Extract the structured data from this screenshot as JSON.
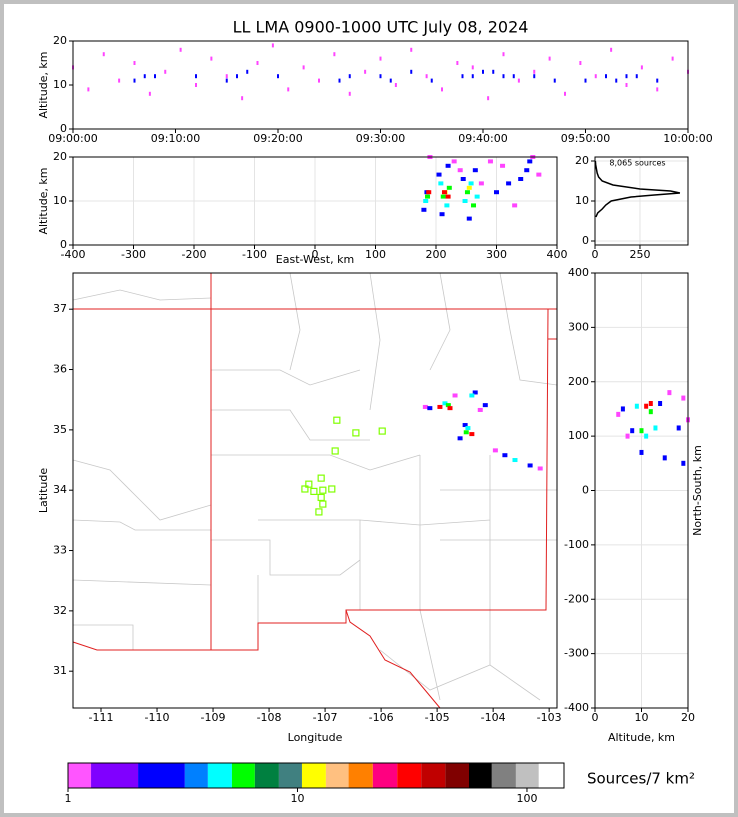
{
  "chart_data": [
    {
      "type": "scatter",
      "title": "LL LMA 0900-1000 UTC July 08, 2024",
      "ylabel": "Altitude, km",
      "xlim": [
        0,
        60
      ],
      "xticks": [
        {
          "value": 0,
          "label": "09:00:00"
        },
        {
          "value": 10,
          "label": "09:10:00"
        },
        {
          "value": 20,
          "label": "09:20:00"
        },
        {
          "value": 30,
          "label": "09:30:00"
        },
        {
          "value": 40,
          "label": "09:40:00"
        },
        {
          "value": 50,
          "label": "09:50:00"
        },
        {
          "value": 60,
          "label": "10:00:00"
        }
      ],
      "ylim": [
        0,
        20
      ],
      "yticks": [
        0,
        10,
        20
      ],
      "grid": false,
      "series": [
        {
          "color": "#ff44ff",
          "x": [
            0,
            1.5,
            3,
            4.5,
            6,
            7.5,
            9,
            10.5,
            12,
            13.5,
            15,
            16.5,
            18,
            19.5,
            21,
            22.5,
            24,
            25.5,
            27,
            28.5,
            30,
            31.5,
            33,
            34.5,
            36,
            37.5,
            39,
            40.5,
            42,
            43.5,
            45,
            46.5,
            48,
            49.5,
            51,
            52.5,
            54,
            55.5,
            57,
            58.5,
            60
          ],
          "y": [
            14,
            9,
            17,
            11,
            15,
            8,
            13,
            18,
            10,
            16,
            12,
            7,
            15,
            19,
            9,
            14,
            11,
            17,
            8,
            13,
            16,
            10,
            18,
            12,
            9,
            15,
            14,
            7,
            17,
            11,
            13,
            16,
            8,
            15,
            12,
            18,
            10,
            14,
            9,
            16,
            13
          ]
        },
        {
          "color": "#0000ff",
          "x": [
            6,
            7,
            8,
            12,
            15,
            16,
            17,
            20,
            26,
            27,
            30,
            31,
            33,
            35,
            38,
            39,
            40,
            41,
            42,
            43,
            45,
            47,
            50,
            52,
            53,
            54,
            55,
            57
          ],
          "y": [
            11,
            12,
            12,
            12,
            11,
            12,
            13,
            12,
            11,
            12,
            12,
            11,
            13,
            11,
            12,
            12,
            13,
            13,
            12,
            12,
            12,
            11,
            11,
            12,
            11,
            12,
            12,
            11
          ]
        }
      ]
    },
    {
      "type": "scatter",
      "xlabel": "East-West, km",
      "ylabel": "Altitude, km",
      "xlim": [
        -400,
        400
      ],
      "xticks": [
        -400,
        -300,
        -200,
        -100,
        0,
        100,
        200,
        300,
        400
      ],
      "ylim": [
        0,
        20
      ],
      "yticks": [
        0,
        10,
        20
      ],
      "grid": true,
      "series": [
        {
          "color": "#ff44ff",
          "x": [
            190,
            230,
            240,
            275,
            290,
            310,
            330,
            360,
            370
          ],
          "y": [
            20,
            19,
            17,
            14,
            19,
            18,
            9,
            20,
            16
          ]
        },
        {
          "color": "#0000ff",
          "x": [
            180,
            185,
            205,
            210,
            220,
            245,
            255,
            265,
            300,
            320,
            340,
            350,
            355
          ],
          "y": [
            8,
            12,
            16,
            7,
            18,
            15,
            6,
            17,
            12,
            14,
            15,
            17,
            19
          ]
        },
        {
          "color": "#00ffff",
          "x": [
            183,
            208,
            218,
            248,
            258,
            268
          ],
          "y": [
            10,
            14,
            9,
            10,
            14,
            11
          ]
        },
        {
          "color": "#00ff00",
          "x": [
            186,
            212,
            222,
            252,
            262
          ],
          "y": [
            11,
            11,
            13,
            12,
            9
          ]
        },
        {
          "color": "#ffff00",
          "x": [
            215,
            255
          ],
          "y": [
            12,
            13
          ]
        },
        {
          "color": "#ff0000",
          "x": [
            188,
            214,
            220
          ],
          "y": [
            12,
            12,
            11
          ]
        }
      ]
    },
    {
      "type": "line",
      "annotation": "8,065 sources",
      "xlim": [
        0,
        517
      ],
      "xticks": [
        0,
        250
      ],
      "ylim": [
        -1,
        21
      ],
      "yticks": [
        0,
        10,
        20
      ],
      "grid": true,
      "series": [
        {
          "color": "#000000",
          "x": [
            5,
            15,
            40,
            60,
            90,
            200,
            330,
            472,
            420,
            250,
            100,
            40,
            20,
            12,
            8,
            4,
            2
          ],
          "y": [
            6,
            7,
            8,
            9,
            10,
            11,
            11.5,
            12,
            12.5,
            13,
            14,
            15,
            16,
            17,
            18,
            19,
            20
          ]
        }
      ]
    },
    {
      "type": "scatter",
      "xlabel": "Longitude",
      "ylabel": "Latitude",
      "xlim": [
        -111.5,
        -102.86
      ],
      "xticks": [
        -111,
        -110,
        -109,
        -108,
        -107,
        -106,
        -105,
        -104,
        -103
      ],
      "ylim": [
        30.39,
        37.6
      ],
      "yticks": [
        31,
        32,
        33,
        34,
        35,
        36,
        37
      ],
      "grid": false,
      "series": [
        {
          "color": "#80ff00",
          "marker": "square",
          "x": [
            -106.79,
            -106.45,
            -105.98,
            -106.82,
            -107.07,
            -107.29,
            -107.36,
            -107.2,
            -107.04,
            -106.88,
            -107.07,
            -107.04,
            -107.11
          ],
          "y": [
            35.16,
            34.95,
            34.98,
            34.65,
            34.2,
            34.1,
            34.02,
            33.98,
            34,
            34.02,
            33.88,
            33.77,
            33.64
          ]
        },
        {
          "color": "#ff44ff",
          "x": [
            -105.21,
            -104.23,
            -103.96,
            -103.16,
            -104.68
          ],
          "y": [
            35.38,
            35.33,
            34.66,
            34.36,
            35.57
          ]
        },
        {
          "color": "#0000ff",
          "x": [
            -105.13,
            -104.32,
            -104.5,
            -103.79,
            -103.34,
            -104.14,
            -104.59
          ],
          "y": [
            35.36,
            35.62,
            35.08,
            34.58,
            34.41,
            35.41,
            34.86
          ]
        },
        {
          "color": "#00ffff",
          "x": [
            -104.86,
            -104.38,
            -104.45,
            -103.61
          ],
          "y": [
            35.44,
            35.57,
            35.03,
            34.5
          ]
        },
        {
          "color": "#00ff00",
          "x": [
            -104.8,
            -104.48
          ],
          "y": [
            35.41,
            34.96
          ]
        },
        {
          "color": "#ff0000",
          "x": [
            -104.77,
            -104.95,
            -104.38
          ],
          "y": [
            35.36,
            35.38,
            34.93
          ]
        }
      ]
    },
    {
      "type": "scatter",
      "xlabel": "Altitude, km",
      "ylabel": "North-South, km",
      "xlim": [
        0,
        20
      ],
      "xticks": [
        0,
        10,
        20
      ],
      "ylim": [
        -400,
        400
      ],
      "yticks": [
        -400,
        -300,
        -200,
        -100,
        0,
        100,
        200,
        300,
        400
      ],
      "grid": true,
      "series": [
        {
          "color": "#ff44ff",
          "x": [
            5,
            19,
            16,
            20,
            7
          ],
          "y": [
            140,
            170,
            180,
            130,
            100
          ]
        },
        {
          "color": "#0000ff",
          "x": [
            6,
            8,
            14,
            18,
            10,
            15,
            19
          ],
          "y": [
            150,
            110,
            160,
            115,
            70,
            60,
            50
          ]
        },
        {
          "color": "#00ffff",
          "x": [
            9,
            13,
            11
          ],
          "y": [
            155,
            115,
            100
          ]
        },
        {
          "color": "#00ff00",
          "x": [
            10,
            12
          ],
          "y": [
            110,
            145
          ]
        },
        {
          "color": "#ff0000",
          "x": [
            11,
            12
          ],
          "y": [
            155,
            160
          ]
        }
      ]
    },
    {
      "type": "colorbar",
      "label": "Sources/7 km²",
      "log": true,
      "xlim": [
        1,
        145
      ],
      "xticks": [
        1,
        10,
        100
      ],
      "bounds": [
        1,
        1.26,
        2.02,
        3.23,
        4.07,
        5.18,
        6.52,
        8.3,
        10.46,
        13.3,
        16.7,
        21.3,
        27.2,
        34.6,
        44.1,
        55.9,
        70.3,
        89.5,
        112.6,
        145
      ],
      "colors": [
        "#ff55ff",
        "#8000ff",
        "#0000ff",
        "#0080ff",
        "#00ffff",
        "#00ff00",
        "#008040",
        "#408080",
        "#ffff00",
        "#ffc080",
        "#ff8000",
        "#ff0080",
        "#ff0000",
        "#c00000",
        "#800000",
        "#000000",
        "#808080",
        "#c0c0c0",
        "#ffffff"
      ]
    }
  ]
}
